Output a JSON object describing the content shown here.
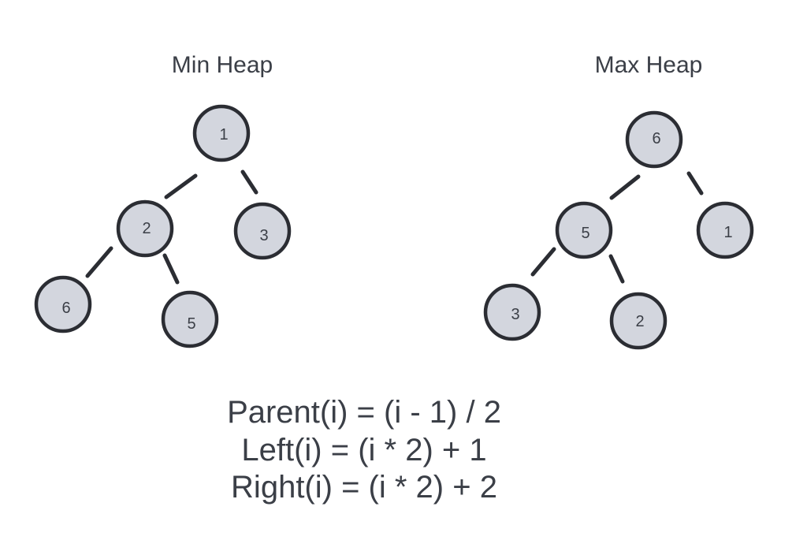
{
  "min_heap": {
    "title": "Min Heap",
    "nodes": [
      {
        "id": "root",
        "label": "1"
      },
      {
        "id": "left",
        "label": "2"
      },
      {
        "id": "right",
        "label": "3"
      },
      {
        "id": "left-left",
        "label": "6"
      },
      {
        "id": "left-right",
        "label": "5"
      }
    ]
  },
  "max_heap": {
    "title": "Max Heap",
    "nodes": [
      {
        "id": "root",
        "label": "6"
      },
      {
        "id": "left",
        "label": "5"
      },
      {
        "id": "right",
        "label": "1"
      },
      {
        "id": "left-left",
        "label": "3"
      },
      {
        "id": "left-right",
        "label": "2"
      }
    ]
  },
  "formulas": [
    "Parent(i) = (i - 1) / 2",
    "Left(i) = (i * 2) + 1",
    "Right(i) = (i * 2) + 2"
  ],
  "colors": {
    "node_fill": "#d3d6de",
    "node_stroke": "#2b2d33",
    "text": "#3b3f47"
  }
}
